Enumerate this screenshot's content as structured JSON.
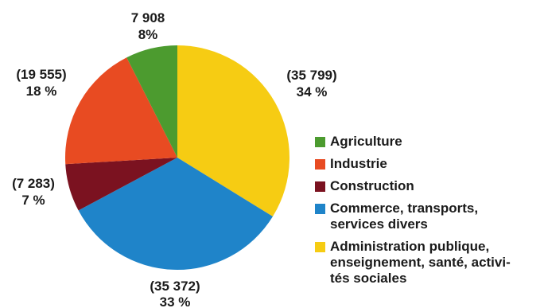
{
  "chart_data": {
    "type": "pie",
    "slices": [
      {
        "name": "Administration publique,\nenseignement, santé, activi-\ntés sociales",
        "value": 35799,
        "value_label": "(35 799)",
        "percent_label": "34 %",
        "color": "#f6cc13"
      },
      {
        "name": "Commerce, transports,\nservices divers",
        "value": 35372,
        "value_label": "(35 372)",
        "percent_label": "33 %",
        "color": "#1f84c9"
      },
      {
        "name": "Construction",
        "value": 7283,
        "value_label": "(7 283)",
        "percent_label": "7 %",
        "color": "#7b1220"
      },
      {
        "name": "Industrie",
        "value": 19555,
        "value_label": "(19 555)",
        "percent_label": "18 %",
        "color": "#e84b22"
      },
      {
        "name": "Agriculture",
        "value": 7908,
        "value_label": "7 908",
        "percent_label": "8%",
        "color": "#4c9b2f"
      }
    ],
    "legend_order": [
      4,
      3,
      2,
      1,
      0
    ],
    "legend_position": "right"
  }
}
